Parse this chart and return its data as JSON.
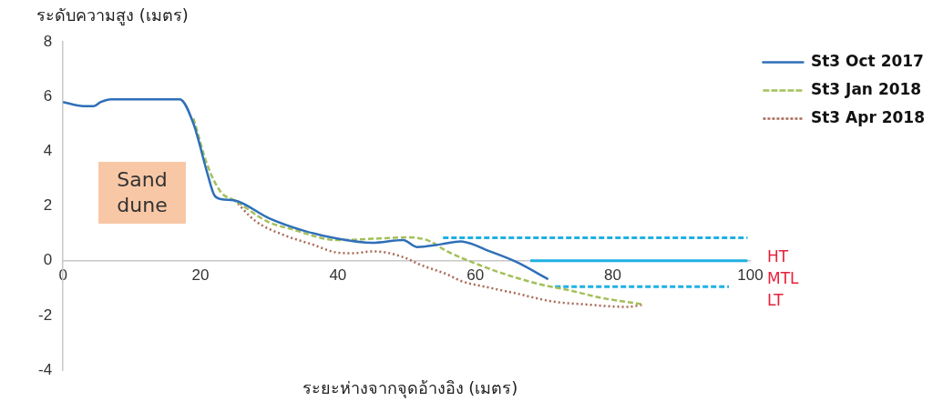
{
  "chart_data": {
    "type": "line",
    "ylabel": "ระดับความสูง (เมตร)",
    "xlabel": "ระยะห่างจากจุดอ้างอิง (เมตร)",
    "xlim": [
      0,
      100
    ],
    "xticks": [
      0,
      20,
      40,
      60,
      80,
      100
    ],
    "ylim": [
      -4,
      8
    ],
    "yticks": [
      -4,
      -2,
      0,
      2,
      4,
      6,
      8
    ],
    "grid": false,
    "legend": "right",
    "marker": "none",
    "series": [
      {
        "name": "St3 Oct 2017",
        "color": "#2e6fb8",
        "line_style": "solid",
        "x": [
          0,
          3,
          4.5,
          5.5,
          7,
          17,
          19,
          21,
          22,
          23,
          25,
          30,
          35,
          40,
          45,
          49.5,
          51.5,
          55,
          57.9,
          62,
          66,
          70.6
        ],
        "values": [
          5.8,
          5.65,
          5.65,
          5.8,
          5.9,
          5.9,
          5.0,
          3.2,
          2.4,
          2.25,
          2.2,
          1.55,
          1.1,
          0.8,
          0.65,
          0.75,
          0.5,
          0.6,
          0.7,
          0.35,
          -0.05,
          -0.68
        ]
      },
      {
        "name": "St3 Jan 2018",
        "color": "#a3c05a",
        "line_style": "dashed",
        "x": [
          19,
          21,
          23,
          25,
          30,
          32.9,
          40,
          45,
          50,
          53,
          55.9,
          60.7,
          65,
          70,
          74,
          78.1,
          84.5
        ],
        "values": [
          5.2,
          3.5,
          2.5,
          2.2,
          1.4,
          1.18,
          0.75,
          0.8,
          0.85,
          0.75,
          0.34,
          -0.17,
          -0.55,
          -0.9,
          -1.1,
          -1.35,
          -1.6
        ]
      },
      {
        "name": "St3 Apr 2018",
        "color": "#a86a55",
        "line_style": "dotted",
        "x": [
          25,
          28,
          32,
          36.2,
          39.8,
          42.2,
          45,
          47,
          49.8,
          52,
          55.9,
          58,
          61.9,
          66,
          71.2,
          76,
          82.1,
          84.5
        ],
        "values": [
          2.2,
          1.45,
          0.95,
          0.6,
          0.3,
          0.27,
          0.34,
          0.3,
          0.1,
          -0.15,
          -0.5,
          -0.75,
          -0.98,
          -1.2,
          -1.49,
          -1.6,
          -1.69,
          -1.6
        ]
      },
      {
        "color": "#1fb0e3",
        "line_style": "dashed",
        "x": [
          55.3,
          99.6
        ],
        "values": [
          0.84,
          0.84
        ]
      },
      {
        "color": "#1fb0e3",
        "line_style": "solid",
        "x": [
          68,
          99.6
        ],
        "values": [
          0,
          0
        ]
      },
      {
        "color": "#1fb0e3",
        "line_style": "dashed",
        "x": [
          71.6,
          96.9
        ],
        "values": [
          -0.95,
          -0.95
        ]
      }
    ],
    "annotations": [
      "Sand dune",
      "HT",
      "MTL",
      "LT"
    ]
  }
}
